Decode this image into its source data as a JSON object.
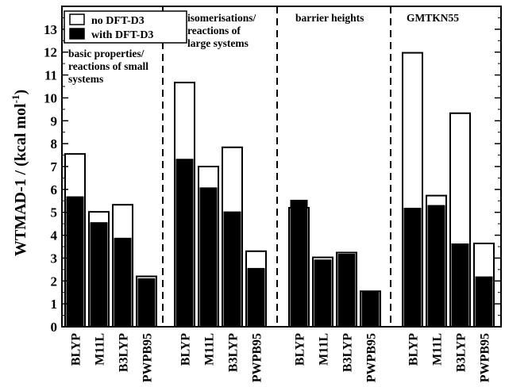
{
  "chart_data": {
    "type": "bar",
    "ylabel": "WTMAD-1 / (kcal mol",
    "ylabel_sup": "-1",
    "ylabel_end": ")",
    "ylim": [
      0,
      14
    ],
    "yticks": [
      0,
      1,
      2,
      3,
      4,
      5,
      6,
      7,
      8,
      9,
      10,
      11,
      12,
      13
    ],
    "grid": false,
    "legend_position": "top-left",
    "series": [
      {
        "name": "no DFT-D3",
        "color": "#ffffff"
      },
      {
        "name": "with DFT-D3",
        "color": "#000000"
      }
    ],
    "groups": [
      {
        "label": [
          "basic properties/",
          "reactions of small",
          "systems"
        ],
        "categories": [
          "BLYP",
          "M11L",
          "B3LYP",
          "PWPB95"
        ],
        "no_d3": [
          7.55,
          5.02,
          5.33,
          2.2
        ],
        "with_d3": [
          5.68,
          4.55,
          3.87,
          2.1
        ]
      },
      {
        "label": [
          "isomerisations/",
          "reactions of",
          "large systems"
        ],
        "categories": [
          "BLYP",
          "M11L",
          "B3LYP",
          "PWPB95"
        ],
        "no_d3": [
          10.67,
          7.0,
          7.84,
          3.3
        ],
        "with_d3": [
          7.32,
          6.07,
          5.02,
          2.55
        ]
      },
      {
        "label": [
          "barrier heights"
        ],
        "categories": [
          "BLYP",
          "M11L",
          "B3LYP",
          "PWPB95"
        ],
        "no_d3": [
          5.2,
          3.03,
          3.24,
          1.55
        ],
        "with_d3": [
          5.53,
          2.92,
          3.17,
          1.55
        ]
      },
      {
        "label": [
          "GMTKN55"
        ],
        "categories": [
          "BLYP",
          "M11L",
          "B3LYP",
          "PWPB95"
        ],
        "no_d3": [
          11.97,
          5.73,
          9.33,
          3.64
        ],
        "with_d3": [
          5.18,
          5.3,
          3.62,
          2.18
        ]
      }
    ]
  }
}
